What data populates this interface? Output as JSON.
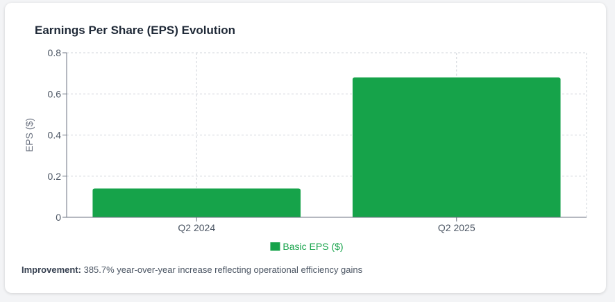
{
  "card": {
    "title": "Earnings Per Share (EPS) Evolution",
    "improvement_label": "Improvement:",
    "improvement_text": "385.7% year-over-year increase reflecting operational efficiency gains"
  },
  "chart_data": {
    "type": "bar",
    "title": "Earnings Per Share (EPS) Evolution",
    "xlabel": "",
    "ylabel": "EPS ($)",
    "categories": [
      "Q2 2024",
      "Q2 2025"
    ],
    "series": [
      {
        "name": "Basic EPS ($)",
        "values": [
          0.14,
          0.68
        ],
        "color": "#16a34a"
      }
    ],
    "ylim": [
      0,
      0.8
    ],
    "yticks": [
      0,
      0.2,
      0.4,
      0.6,
      0.8
    ],
    "ytick_labels": [
      "0",
      "0.2",
      "0.4",
      "0.6",
      "0.8"
    ],
    "grid": true,
    "legend_position": "bottom-center"
  }
}
